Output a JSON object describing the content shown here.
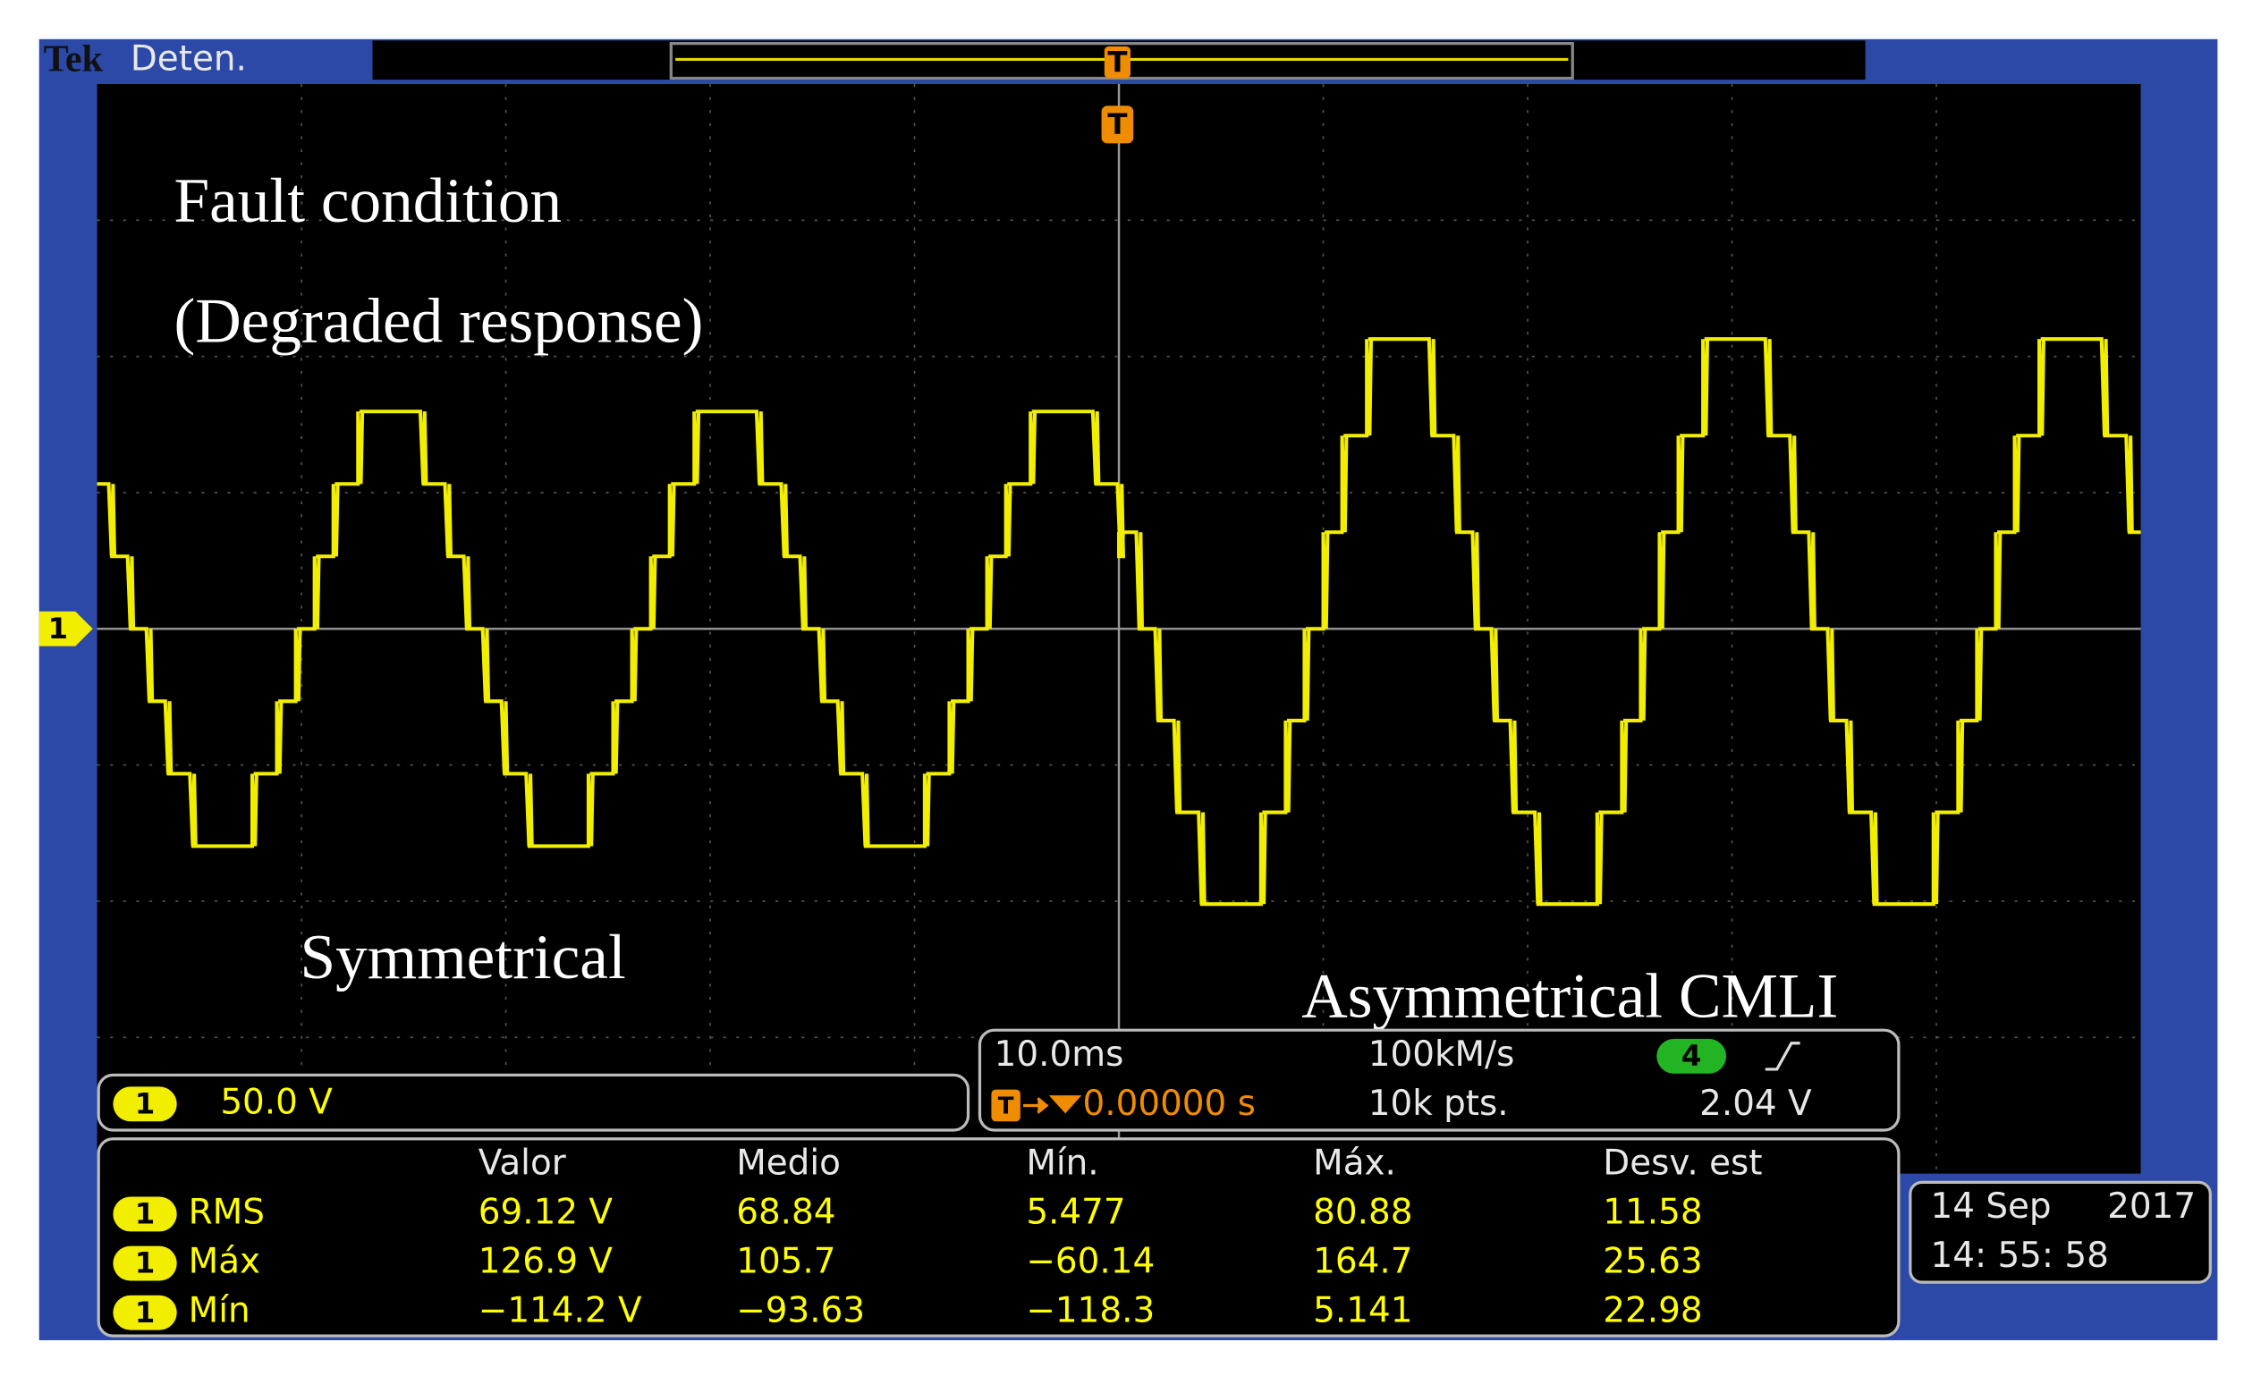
{
  "header": {
    "brand": "Tek",
    "status": "Deten.",
    "trigger_marker": "T"
  },
  "annotations": [
    "Fault condition",
    "(Degraded response)",
    "Symmetrical",
    "Asymmetrical CMLI"
  ],
  "channel": {
    "number": "1",
    "scale": "50.0 V"
  },
  "acquisition": {
    "timebase": "10.0ms",
    "trigger_position": "0.00000 s",
    "sample_rate": "100kM/s",
    "record_length": "10k pts.",
    "trigger_source": "4",
    "trigger_level": "2.04 V"
  },
  "measurements": {
    "columns": [
      "Valor",
      "Medio",
      "Mín.",
      "Máx.",
      "Desv. est"
    ],
    "rows": [
      {
        "channel": "1",
        "name": "RMS",
        "values": [
          "69.12 V",
          "68.84",
          "5.477",
          "80.88",
          "11.58"
        ]
      },
      {
        "channel": "1",
        "name": "Máx",
        "values": [
          "126.9 V",
          "105.7",
          "−60.14",
          "164.7",
          "25.63"
        ]
      },
      {
        "channel": "1",
        "name": "Mín",
        "values": [
          "−114.2 V",
          "−93.63",
          "−118.3",
          "5.141",
          "22.98"
        ]
      }
    ]
  },
  "timestamp": {
    "date": "14 Sep",
    "year": "2017",
    "time": "14: 55: 58"
  }
}
